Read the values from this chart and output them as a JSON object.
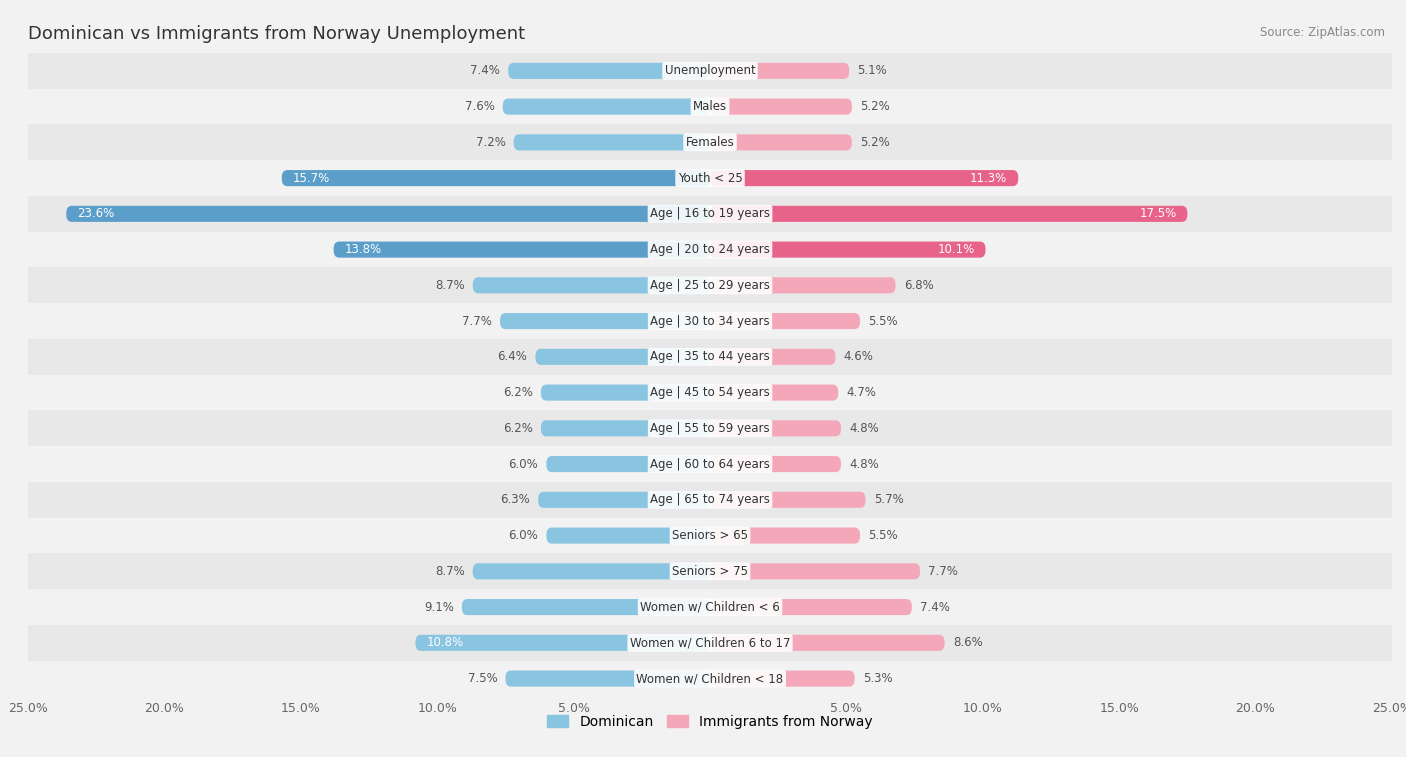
{
  "title": "Dominican vs Immigrants from Norway Unemployment",
  "source": "Source: ZipAtlas.com",
  "categories": [
    "Unemployment",
    "Males",
    "Females",
    "Youth < 25",
    "Age | 16 to 19 years",
    "Age | 20 to 24 years",
    "Age | 25 to 29 years",
    "Age | 30 to 34 years",
    "Age | 35 to 44 years",
    "Age | 45 to 54 years",
    "Age | 55 to 59 years",
    "Age | 60 to 64 years",
    "Age | 65 to 74 years",
    "Seniors > 65",
    "Seniors > 75",
    "Women w/ Children < 6",
    "Women w/ Children 6 to 17",
    "Women w/ Children < 18"
  ],
  "dominican": [
    7.4,
    7.6,
    7.2,
    15.7,
    23.6,
    13.8,
    8.7,
    7.7,
    6.4,
    6.2,
    6.2,
    6.0,
    6.3,
    6.0,
    8.7,
    9.1,
    10.8,
    7.5
  ],
  "norway": [
    5.1,
    5.2,
    5.2,
    11.3,
    17.5,
    10.1,
    6.8,
    5.5,
    4.6,
    4.7,
    4.8,
    4.8,
    5.7,
    5.5,
    7.7,
    7.4,
    8.6,
    5.3
  ],
  "dominican_color_normal": "#89c4e1",
  "dominican_color_highlight": "#5b9ec9",
  "norway_color_normal": "#f4a7b9",
  "norway_color_highlight": "#e8638a",
  "highlight_indices": [
    3,
    4,
    5
  ],
  "background_color": "#f2f2f2",
  "row_colors": [
    "#e8e8e8",
    "#f2f2f2"
  ],
  "xlim": 25.0,
  "label_dominican": "Dominican",
  "label_norway": "Immigrants from Norway",
  "bar_height": 0.45,
  "value_label_threshold": 10.0,
  "fontsize_title": 13,
  "fontsize_labels": 8.5,
  "fontsize_ticks": 9,
  "fontsize_legend": 10
}
